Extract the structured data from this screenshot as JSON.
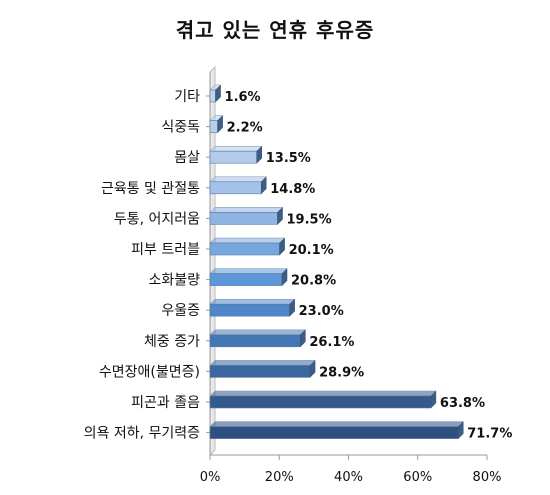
{
  "chart_data": {
    "type": "bar",
    "orientation": "horizontal",
    "title": "겪고 있는 연휴 후유증",
    "categories": [
      "기타",
      "식중독",
      "몸살",
      "근육통 및 관절통",
      "두통, 어지러움",
      "피부 트러블",
      "소화불량",
      "우울증",
      "체중 증가",
      "수면장애(불면증)",
      "피곤과 졸음",
      "의욕 저하, 무기력증"
    ],
    "values": [
      1.6,
      2.2,
      13.5,
      14.8,
      19.5,
      20.1,
      20.8,
      23.0,
      26.1,
      28.9,
      63.8,
      71.7
    ],
    "value_labels": [
      "1.6%",
      "2.2%",
      "13.5%",
      "14.8%",
      "19.5%",
      "20.1%",
      "20.8%",
      "23.0%",
      "26.1%",
      "28.9%",
      "63.8%",
      "71.7%"
    ],
    "x_ticks": [
      "0%",
      "20%",
      "40%",
      "60%",
      "80%"
    ],
    "xlim": [
      0,
      80
    ],
    "xlabel": "",
    "ylabel": "",
    "grid": false,
    "bar_colors": [
      "#c3d4ea",
      "#bccfe8",
      "#b3cbea",
      "#a4c2ea",
      "#8fb4e3",
      "#78a7df",
      "#5d97d8",
      "#4f87c8",
      "#4576b4",
      "#3b66a0",
      "#34598d",
      "#2e4f80"
    ]
  }
}
